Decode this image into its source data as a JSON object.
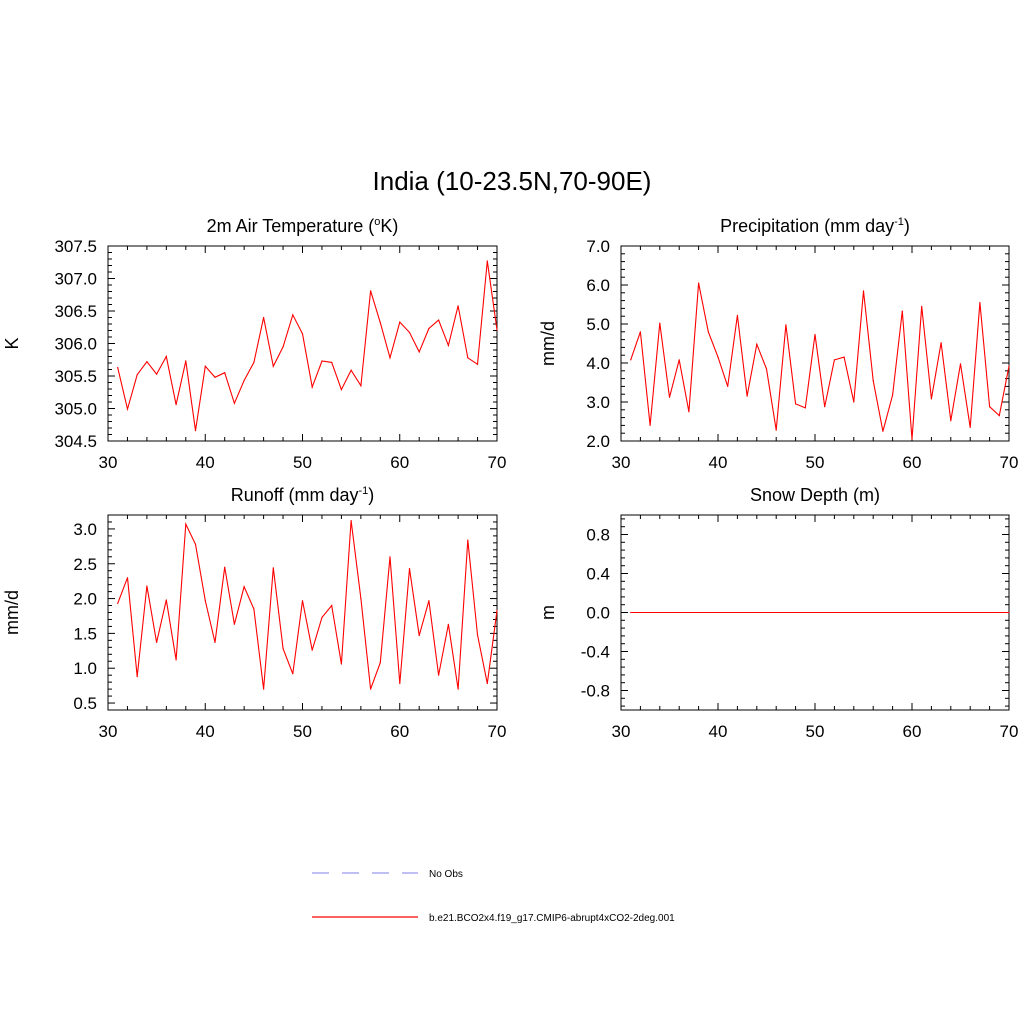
{
  "title": "India (10-23.5N,70-90E)",
  "legend": [
    {
      "label": "No Obs",
      "color": "#9999ee",
      "dash": true
    },
    {
      "label": "b.e21.BCO2x4.f19_g17.CMIP6-abrupt4xCO2-2deg.001",
      "color": "#ff0000",
      "dash": false
    }
  ],
  "chart_data": [
    {
      "type": "line",
      "title": "2m Air Temperature (",
      "title_sup": "o",
      "title_tail": "K)",
      "ylabel": "K",
      "xlim": [
        30,
        70
      ],
      "ylim": [
        304.5,
        307.5
      ],
      "xticks": [
        "30",
        "40",
        "50",
        "60",
        "70"
      ],
      "yticks": [
        "304.5",
        "305.0",
        "305.5",
        "306.0",
        "306.5",
        "307.0",
        "307.5"
      ],
      "x": [
        31,
        32,
        33,
        34,
        35,
        36,
        37,
        38,
        39,
        40,
        41,
        42,
        43,
        44,
        45,
        46,
        47,
        48,
        49,
        50,
        51,
        52,
        53,
        54,
        55,
        56,
        57,
        58,
        59,
        60,
        61,
        62,
        63,
        64,
        65,
        66,
        67,
        68,
        69,
        70
      ],
      "series": [
        {
          "values": [
            305.63,
            304.99,
            305.52,
            305.72,
            305.53,
            305.8,
            305.06,
            305.73,
            304.66,
            305.65,
            305.48,
            305.55,
            305.08,
            305.43,
            305.71,
            306.4,
            305.65,
            305.95,
            306.44,
            306.15,
            305.33,
            305.73,
            305.71,
            305.29,
            305.59,
            305.35,
            306.81,
            306.32,
            305.78,
            306.33,
            306.17,
            305.87,
            306.23,
            306.36,
            305.97,
            306.58,
            305.78,
            305.68,
            307.27,
            306.21
          ]
        }
      ]
    },
    {
      "type": "line",
      "title": "Precipitation (mm day",
      "title_sup": "-1",
      "title_tail": ")",
      "ylabel": "mm/d",
      "xlim": [
        30,
        70
      ],
      "ylim": [
        2.0,
        7.0
      ],
      "xticks": [
        "30",
        "40",
        "50",
        "60",
        "70"
      ],
      "yticks": [
        "2.0",
        "3.0",
        "4.0",
        "5.0",
        "6.0",
        "7.0"
      ],
      "x": [
        31,
        32,
        33,
        34,
        35,
        36,
        37,
        38,
        39,
        40,
        41,
        42,
        43,
        44,
        45,
        46,
        47,
        48,
        49,
        50,
        51,
        52,
        53,
        54,
        55,
        56,
        57,
        58,
        59,
        60,
        61,
        62,
        63,
        64,
        65,
        66,
        67,
        68,
        69,
        70
      ],
      "series": [
        {
          "values": [
            4.08,
            4.8,
            2.4,
            5.02,
            3.12,
            4.08,
            2.75,
            6.05,
            4.8,
            4.15,
            3.4,
            5.22,
            3.15,
            4.48,
            3.85,
            2.28,
            4.98,
            2.95,
            2.85,
            4.73,
            2.88,
            4.08,
            4.15,
            3.0,
            5.85,
            3.55,
            2.25,
            3.18,
            5.33,
            2.05,
            5.45,
            3.08,
            4.52,
            2.52,
            3.98,
            2.35,
            5.55,
            2.88,
            2.65,
            3.92
          ]
        }
      ]
    },
    {
      "type": "line",
      "title": "Runoff (mm day",
      "title_sup": "-1",
      "title_tail": ")",
      "ylabel": "mm/d",
      "xlim": [
        30,
        70
      ],
      "ylim": [
        0.4,
        3.2
      ],
      "xticks": [
        "30",
        "40",
        "50",
        "60",
        "70"
      ],
      "yticks": [
        "0.5",
        "1.0",
        "1.5",
        "2.0",
        "2.5",
        "3.0"
      ],
      "ytick_values": [
        0.5,
        1.0,
        1.5,
        2.0,
        2.5,
        3.0
      ],
      "x": [
        31,
        32,
        33,
        34,
        35,
        36,
        37,
        38,
        39,
        40,
        41,
        42,
        43,
        44,
        45,
        46,
        47,
        48,
        49,
        50,
        51,
        52,
        53,
        54,
        55,
        56,
        57,
        58,
        59,
        60,
        61,
        62,
        63,
        64,
        65,
        66,
        67,
        68,
        69,
        70
      ],
      "series": [
        {
          "values": [
            1.93,
            2.3,
            0.88,
            2.18,
            1.37,
            1.98,
            1.12,
            3.07,
            2.78,
            1.97,
            1.37,
            2.45,
            1.63,
            2.17,
            1.85,
            0.7,
            2.44,
            1.28,
            0.92,
            1.97,
            1.26,
            1.73,
            1.9,
            1.06,
            3.12,
            2.0,
            0.7,
            1.08,
            2.6,
            0.78,
            2.43,
            1.47,
            1.97,
            0.9,
            1.63,
            0.7,
            2.84,
            1.48,
            0.78,
            1.83
          ]
        }
      ]
    },
    {
      "type": "line",
      "title": "Snow Depth (m)",
      "title_sup": "",
      "title_tail": "",
      "ylabel": "m",
      "xlim": [
        30,
        70
      ],
      "ylim": [
        -1.0,
        1.0
      ],
      "xticks": [
        "30",
        "40",
        "50",
        "60",
        "70"
      ],
      "yticks": [
        "-0.8",
        "-0.4",
        "0.0",
        "0.4",
        "0.8"
      ],
      "ytick_values": [
        -0.8,
        -0.4,
        0.0,
        0.4,
        0.8
      ],
      "x": [
        31,
        70
      ],
      "series": [
        {
          "values": [
            0.0,
            0.0
          ]
        }
      ]
    }
  ]
}
